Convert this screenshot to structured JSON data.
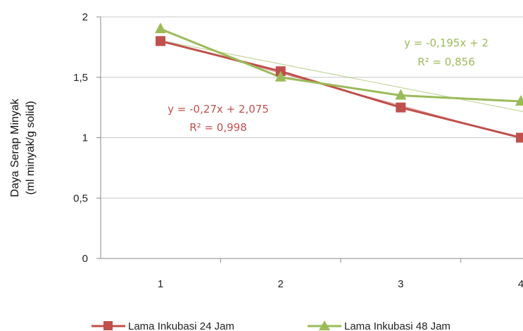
{
  "chart_data": {
    "type": "line",
    "x": [
      1,
      2,
      3,
      4
    ],
    "xlim": [
      1,
      4
    ],
    "ylim": [
      0,
      2
    ],
    "yticks": [
      "0",
      "0,5",
      "1",
      "1,5",
      "2"
    ],
    "xticks": [
      "1",
      "2",
      "3",
      "4"
    ],
    "ylabel_line1": "Daya Serap Minyak",
    "ylabel_line2": "(ml minyak/g solid)",
    "grid": true,
    "legend_position": "bottom",
    "series": [
      {
        "name": "Lama Inkubasi 24 Jam",
        "values": [
          1.8,
          1.55,
          1.25,
          1.0
        ],
        "color": "#c0504d",
        "marker": "square",
        "trendline": {
          "slope": -0.27,
          "intercept": 2.075
        },
        "equation": "y = -0,27x + 2,075",
        "r2": "R² = 0,998"
      },
      {
        "name": "Lama Inkubasi 48 Jam",
        "values": [
          1.9,
          1.5,
          1.35,
          1.3
        ],
        "color": "#9bbb59",
        "marker": "triangle",
        "trendline": {
          "slope": -0.195,
          "intercept": 2.0
        },
        "equation": "y = -0,195x + 2",
        "r2": "R² = 0,856"
      }
    ]
  }
}
